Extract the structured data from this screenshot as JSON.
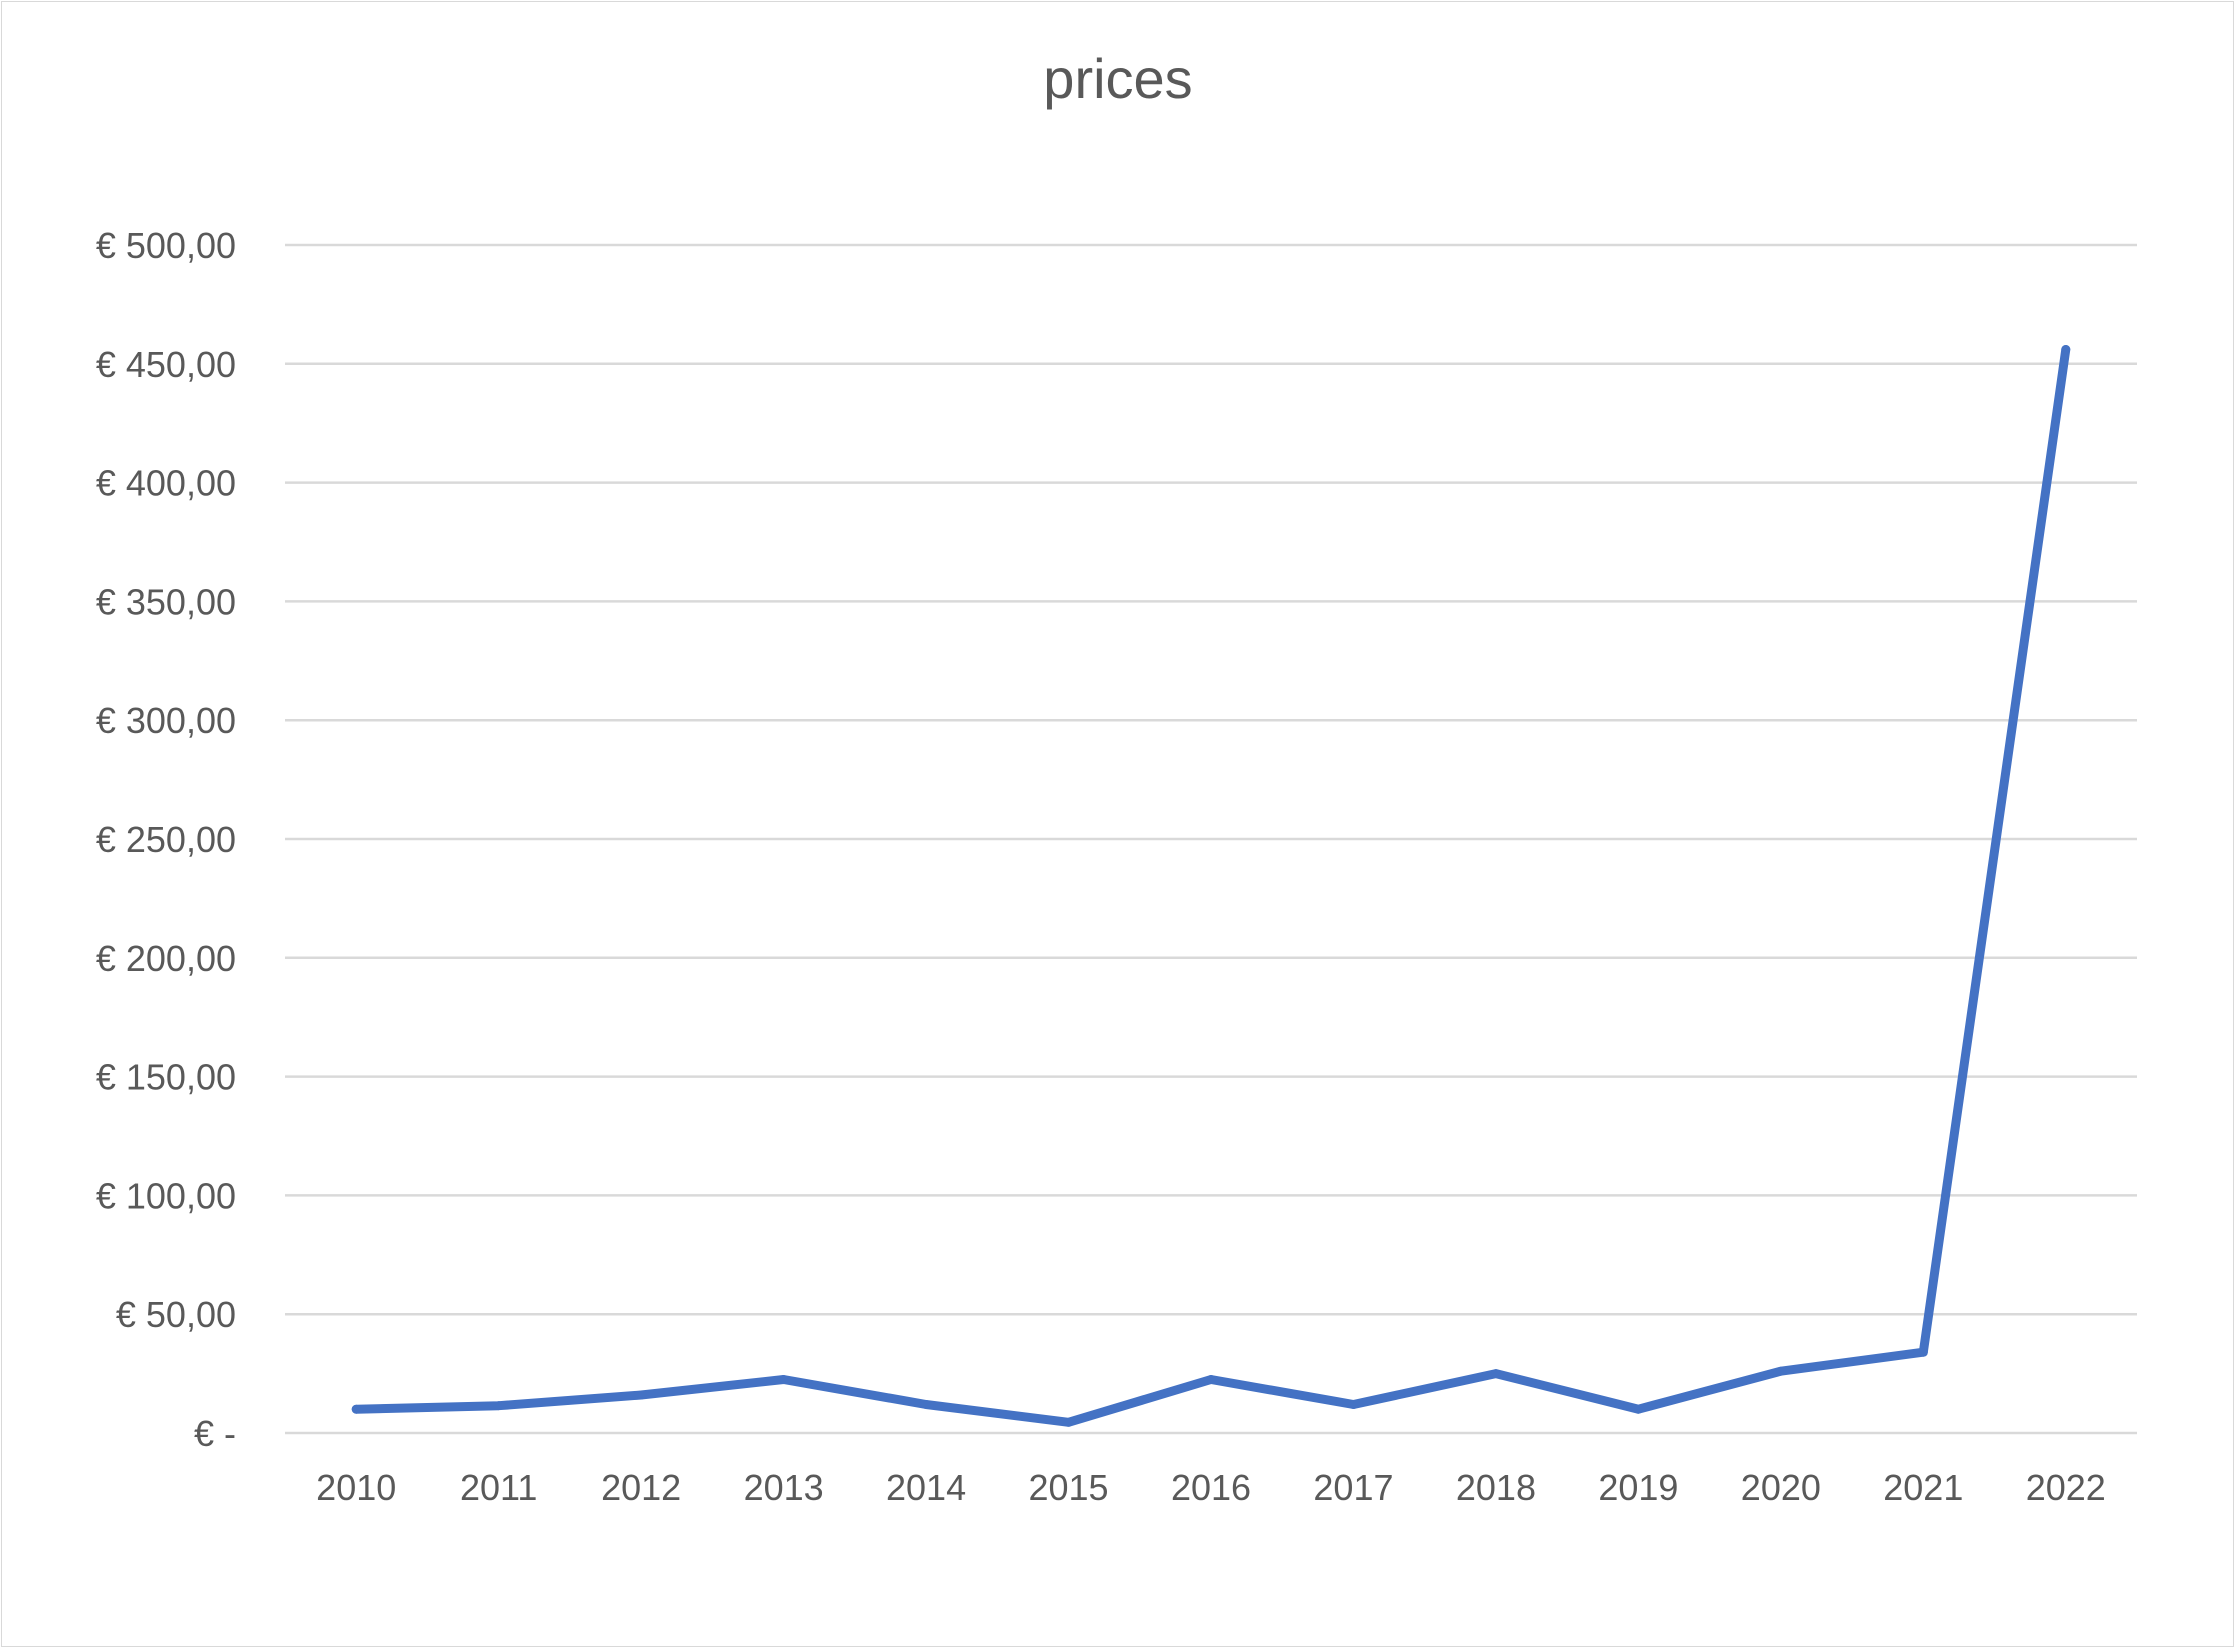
{
  "chart_data": {
    "type": "line",
    "title": "prices",
    "xlabel": "",
    "ylabel": "",
    "categories": [
      "2010",
      "2011",
      "2012",
      "2013",
      "2014",
      "2015",
      "2016",
      "2017",
      "2018",
      "2019",
      "2020",
      "2021",
      "2022"
    ],
    "series": [
      {
        "values": [
          10,
          11.5,
          16,
          22.5,
          12,
          4.5,
          22.5,
          12,
          25,
          10,
          26,
          34,
          456
        ]
      }
    ],
    "ylim": [
      0,
      500
    ],
    "ytick_labels": [
      "€ -",
      "€ 50,00",
      "€ 100,00",
      "€ 150,00",
      "€ 200,00",
      "€ 250,00",
      "€ 300,00",
      "€ 350,00",
      "€ 400,00",
      "€ 450,00",
      "€ 500,00"
    ],
    "grid": true,
    "legend": "none",
    "colors": {
      "line": "#4472c4",
      "grid": "#d9d9d9",
      "text": "#595959"
    }
  }
}
